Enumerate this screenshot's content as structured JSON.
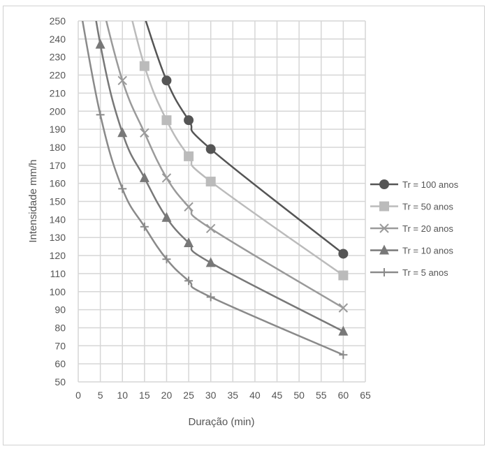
{
  "chart_data": {
    "type": "line",
    "title": "",
    "xlabel": "Duração (min)",
    "ylabel": "Intensidade mm/h",
    "xlim": [
      0,
      65
    ],
    "ylim": [
      50,
      250
    ],
    "xticks": [
      0,
      5,
      10,
      15,
      20,
      25,
      30,
      35,
      40,
      45,
      50,
      55,
      60,
      65
    ],
    "yticks": [
      50,
      60,
      70,
      80,
      90,
      100,
      110,
      120,
      130,
      140,
      150,
      160,
      170,
      180,
      190,
      200,
      210,
      220,
      230,
      240,
      250
    ],
    "grid": true,
    "legend_position": "right",
    "series": [
      {
        "name": "Tr = 100 anos",
        "marker": "circle",
        "color": "#555555",
        "x": [
          20,
          25,
          30,
          60
        ],
        "y": [
          217,
          195,
          179,
          121
        ]
      },
      {
        "name": "Tr = 50 anos",
        "marker": "square",
        "color": "#bbbbbb",
        "x": [
          15,
          20,
          25,
          30,
          60
        ],
        "y": [
          225,
          195,
          175,
          161,
          109
        ]
      },
      {
        "name": "Tr = 20 anos",
        "marker": "x",
        "color": "#9a9a9a",
        "x": [
          10,
          15,
          20,
          25,
          30,
          60
        ],
        "y": [
          217,
          188,
          163,
          147,
          135,
          91
        ]
      },
      {
        "name": "Tr = 10 anos",
        "marker": "triangle",
        "color": "#787878",
        "x": [
          5,
          10,
          15,
          20,
          25,
          30,
          60
        ],
        "y": [
          237,
          188,
          163,
          141,
          127,
          116,
          78
        ]
      },
      {
        "name": "Tr = 5 anos",
        "marker": "plus",
        "color": "#8a8a8a",
        "x": [
          5,
          10,
          15,
          20,
          25,
          30,
          60
        ],
        "y": [
          198,
          157,
          136,
          118,
          106,
          97,
          65
        ]
      }
    ]
  }
}
